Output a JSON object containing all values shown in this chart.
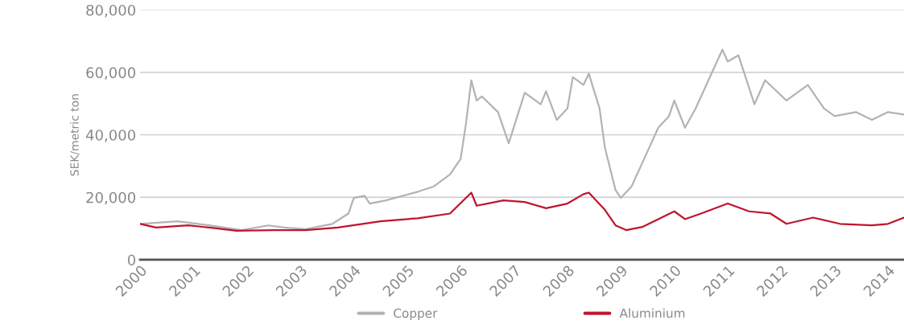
{
  "chart_data": {
    "type": "line",
    "ylabel": "SEK/metric ton",
    "x": [
      2000.0,
      2000.7,
      2001.3,
      2001.9,
      2002.4,
      2002.7,
      2003.1,
      2003.6,
      2003.9,
      2004.0,
      2004.2,
      2004.3,
      2004.6,
      2005.2,
      2005.5,
      2005.8,
      2006.0,
      2006.1,
      2006.2,
      2006.3,
      2006.4,
      2006.7,
      2006.9,
      2007.2,
      2007.5,
      2007.6,
      2007.8,
      2008.0,
      2008.1,
      2008.3,
      2008.4,
      2008.6,
      2008.7,
      2008.9,
      2009.0,
      2009.2,
      2009.4,
      2009.7,
      2009.9,
      2010.0,
      2010.2,
      2010.4,
      2010.6,
      2010.9,
      2011.0,
      2011.2,
      2011.5,
      2011.7,
      2012.1,
      2012.5,
      2012.8,
      2013.0,
      2013.4,
      2013.7,
      2014.0,
      2014.3
    ],
    "series": [
      {
        "name": "Copper",
        "color": "#b3b3b3",
        "values": [
          11500,
          12300,
          11000,
          9500,
          11000,
          10300,
          9800,
          11500,
          14800,
          19800,
          20500,
          18000,
          19000,
          21800,
          23500,
          27300,
          32300,
          43600,
          57500,
          51000,
          52300,
          47300,
          37300,
          53500,
          49800,
          54000,
          44800,
          48500,
          58500,
          56000,
          59600,
          48500,
          36000,
          22300,
          19800,
          23500,
          31000,
          42300,
          46000,
          51000,
          42300,
          48500,
          56000,
          67300,
          63500,
          65500,
          49800,
          57500,
          51000,
          56000,
          48500,
          46000,
          47300,
          44800,
          47300,
          46500
        ]
      },
      {
        "name": "Aluminium",
        "color": "#c0142c",
        "x": [
          2000.0,
          2000.3,
          2000.9,
          2001.3,
          2001.8,
          2002.5,
          2003.1,
          2003.7,
          2004.5,
          2005.2,
          2005.8,
          2006.2,
          2006.3,
          2006.8,
          2007.2,
          2007.6,
          2008.0,
          2008.3,
          2008.4,
          2008.7,
          2008.9,
          2009.1,
          2009.4,
          2009.7,
          2010.0,
          2010.2,
          2010.5,
          2011.0,
          2011.4,
          2011.8,
          2012.1,
          2012.6,
          2013.1,
          2013.7,
          2014.0,
          2014.3
        ],
        "values": [
          11500,
          10300,
          11000,
          10300,
          9300,
          9500,
          9500,
          10300,
          12300,
          13300,
          14800,
          21500,
          17300,
          19000,
          18500,
          16500,
          18000,
          21000,
          21500,
          16000,
          11000,
          9500,
          10500,
          13000,
          15500,
          13000,
          14800,
          18000,
          15500,
          14800,
          11500,
          13500,
          11500,
          11000,
          11500,
          13500
        ]
      }
    ],
    "xlim": [
      2000,
      2014.3
    ],
    "xticks": [
      2000,
      2001,
      2002,
      2003,
      2004,
      2005,
      2006,
      2007,
      2008,
      2009,
      2010,
      2011,
      2012,
      2013,
      2014
    ],
    "ylim": [
      0,
      80000
    ],
    "yticks": [
      {
        "value": 0,
        "label": "0"
      },
      {
        "value": 20000,
        "label": "20,000"
      },
      {
        "value": 40000,
        "label": "40,000"
      },
      {
        "value": 60000,
        "label": "60,000"
      },
      {
        "value": 80000,
        "label": "80,000"
      }
    ],
    "grid": "y",
    "legend": "bottom",
    "marker": "none",
    "line_style": "solid"
  }
}
